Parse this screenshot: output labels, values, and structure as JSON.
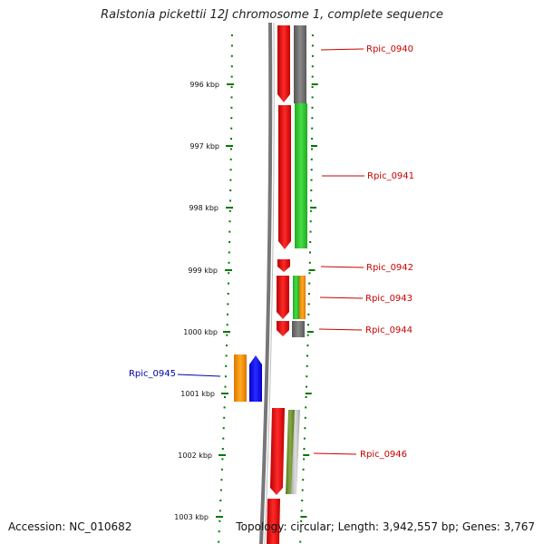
{
  "title": "Ralstonia pickettii 12J chromosome 1, complete sequence",
  "footer": {
    "accession": "Accession: NC_010682",
    "stats": "Topology: circular; Length: 3,942,557 bp; Genes: 3,767"
  },
  "scale_labels": [
    "996 kbp",
    "997 kbp",
    "998 kbp",
    "999 kbp",
    "1000 kbp",
    "1001 kbp",
    "1002 kbp",
    "1003 kbp"
  ],
  "gene_labels": [
    {
      "name": "Rpic_0940",
      "color": "#cc0000"
    },
    {
      "name": "Rpic_0941",
      "color": "#cc0000"
    },
    {
      "name": "Rpic_0942",
      "color": "#cc0000"
    },
    {
      "name": "Rpic_0943",
      "color": "#cc0000"
    },
    {
      "name": "Rpic_0944",
      "color": "#cc0000"
    },
    {
      "name": "Rpic_0945",
      "color": "#0000aa"
    },
    {
      "name": "Rpic_0946",
      "color": "#cc0000"
    }
  ],
  "colors": {
    "forward_strand": "#ff0000",
    "reverse_strand": "#0000ff",
    "ticks": "#007700",
    "backbone": "#888888"
  }
}
